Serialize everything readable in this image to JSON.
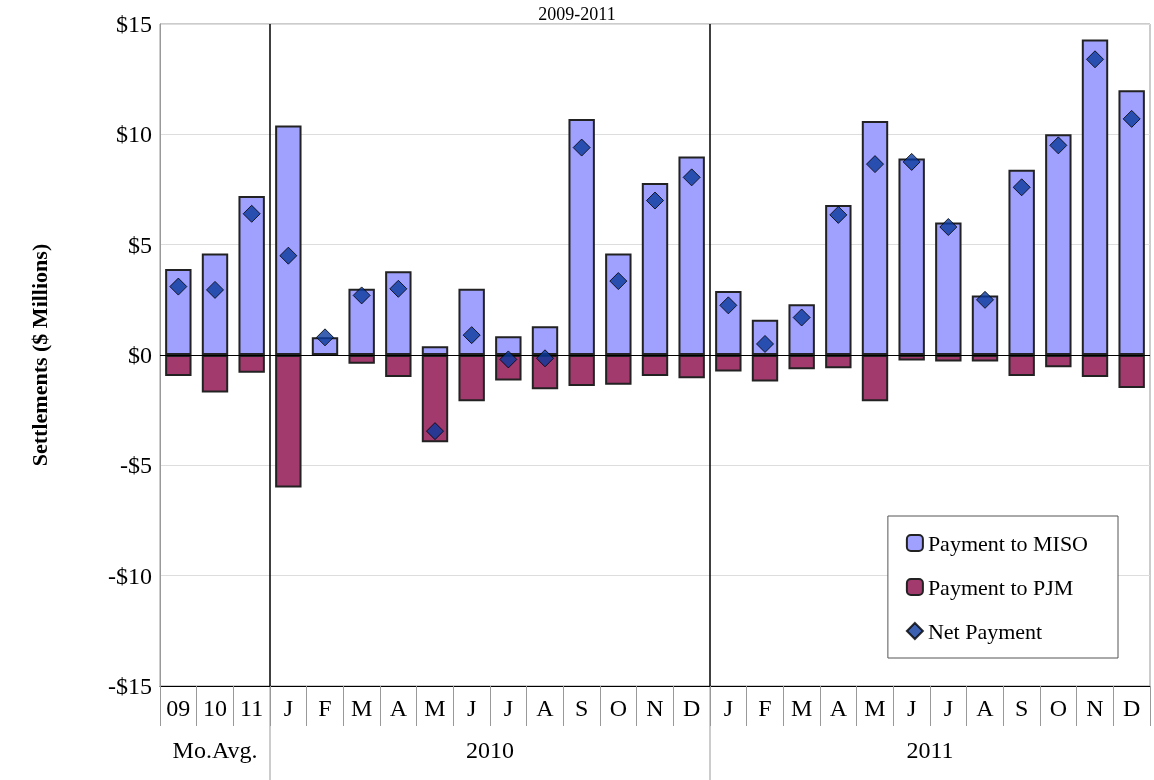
{
  "chart_data": {
    "type": "bar",
    "title": "2009-2011",
    "ylabel": "Settlements ($ Millions)",
    "categories": [
      "09",
      "10",
      "11",
      "J",
      "F",
      "M",
      "A",
      "M",
      "J",
      "J",
      "A",
      "S",
      "O",
      "N",
      "D",
      "J",
      "F",
      "M",
      "A",
      "M",
      "J",
      "J",
      "A",
      "S",
      "O",
      "N",
      "D"
    ],
    "annotations": [
      "Mo.Avg.",
      "2010",
      "2011"
    ],
    "stacked": true,
    "series": [
      {
        "name": "Payment to MISO",
        "color": "#a0a0ff",
        "values": [
          3.9,
          4.6,
          7.2,
          10.4,
          0.8,
          3.0,
          3.8,
          0.4,
          3.0,
          0.85,
          1.3,
          10.7,
          4.6,
          7.8,
          9.0,
          2.9,
          1.6,
          2.3,
          6.8,
          10.6,
          8.9,
          6.0,
          2.7,
          8.4,
          10.0,
          14.3,
          12.0
        ]
      },
      {
        "name": "Payment to PJM",
        "color": "#a33a6e",
        "values": [
          -0.95,
          -1.7,
          -0.8,
          -6.0,
          null,
          -0.4,
          -1.0,
          -3.95,
          -2.1,
          -1.15,
          -1.55,
          -1.4,
          -1.35,
          -0.95,
          -1.05,
          -0.75,
          -1.2,
          -0.65,
          -0.6,
          -2.1,
          -0.25,
          -0.3,
          -0.3,
          -0.95,
          -0.55,
          -1.0,
          -1.5
        ]
      },
      {
        "name": "Net Payment",
        "type": "scatter",
        "marker": "diamond",
        "color": "#0a3a9c",
        "values": [
          3.1,
          2.95,
          6.4,
          4.5,
          0.8,
          2.7,
          3.0,
          -3.45,
          0.9,
          -0.2,
          -0.15,
          9.4,
          3.35,
          7.0,
          8.05,
          2.25,
          0.5,
          1.7,
          6.35,
          8.65,
          8.75,
          5.8,
          2.5,
          7.6,
          9.5,
          13.4,
          10.7
        ]
      }
    ],
    "ylim": [
      -15,
      15
    ],
    "yticks": [
      {
        "value": -15,
        "label": "-$15"
      },
      {
        "value": -10,
        "label": "-$10"
      },
      {
        "value": -5,
        "label": "-$5"
      },
      {
        "value": 0,
        "label": "$0"
      },
      {
        "value": 5,
        "label": "$5"
      },
      {
        "value": 10,
        "label": "$10"
      },
      {
        "value": 15,
        "label": "$15"
      }
    ],
    "grid": "y",
    "legend": "bottom right"
  }
}
